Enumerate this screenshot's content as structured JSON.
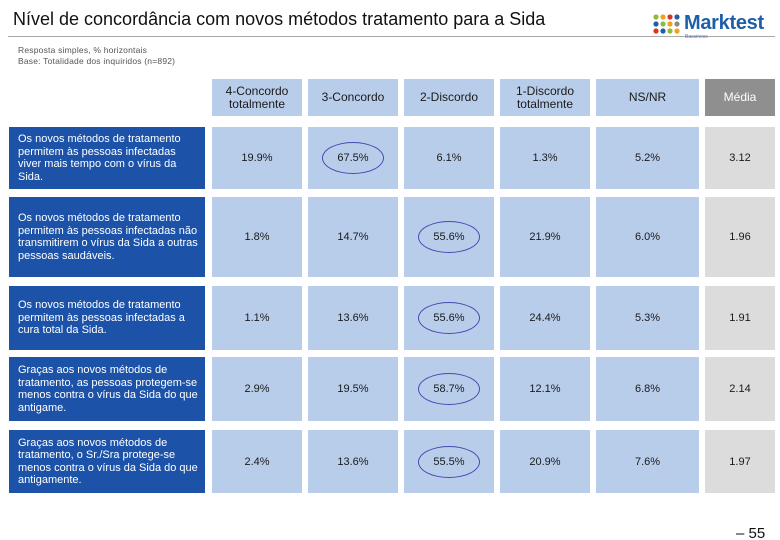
{
  "header": {
    "title": "Nível de concordância com novos métodos tratamento para a Sida",
    "subtitle_1": "Resposta simples, % horizontais",
    "subtitle_2": "Base: Totalidade dos inquiridos (n=892)"
  },
  "logo": {
    "name": "Marktest",
    "tagline": "Bassiness"
  },
  "colors": {
    "row_label_bg": "#1c52a8",
    "cell_bg": "#b8cdea",
    "media_header_bg": "#8f8f8f",
    "media_cell_bg": "#dcdcdc",
    "highlight_ring": "#4a4ab5",
    "logo_blue": "#1f5fa8"
  },
  "chart_data": {
    "type": "table",
    "title": "Nível de concordância com novos métodos tratamento para a Sida",
    "columns": [
      "4-Concordo totalmente",
      "3-Concordo",
      "2-Discordo",
      "1-Discordo totalmente",
      "NS/NR",
      "Média"
    ],
    "rows": [
      {
        "label": "Os novos métodos de tratamento permitem às pessoas infectadas viver mais tempo com o vírus da Sida.",
        "values": [
          "19.9%",
          "67.5%",
          "6.1%",
          "1.3%",
          "5.2%",
          "3.12"
        ],
        "highlight": 1
      },
      {
        "label": "Os novos métodos de tratamento permitem às pessoas infectadas não transmitirem o vírus da Sida a outras pessoas saudáveis.",
        "values": [
          "1.8%",
          "14.7%",
          "55.6%",
          "21.9%",
          "6.0%",
          "1.96"
        ],
        "highlight": 2
      },
      {
        "label": "Os novos métodos de tratamento permitem às pessoas infectadas a cura total da Sida.",
        "values": [
          "1.1%",
          "13.6%",
          "55.6%",
          "24.4%",
          "5.3%",
          "1.91"
        ],
        "highlight": 2
      },
      {
        "label": "Graças aos novos métodos de tratamento, as pessoas protegem-se menos contra o vírus da Sida do que antigame.",
        "values": [
          "2.9%",
          "19.5%",
          "58.7%",
          "12.1%",
          "6.8%",
          "2.14"
        ],
        "highlight": 2
      },
      {
        "label": "Graças aos novos métodos de tratamento, o Sr./Sra protege-se menos contra o vírus da Sida do que antigamente.",
        "values": [
          "2.4%",
          "13.6%",
          "55.5%",
          "20.9%",
          "7.6%",
          "1.97"
        ],
        "highlight": 2
      }
    ]
  },
  "footer": {
    "page_number": "– 55"
  }
}
